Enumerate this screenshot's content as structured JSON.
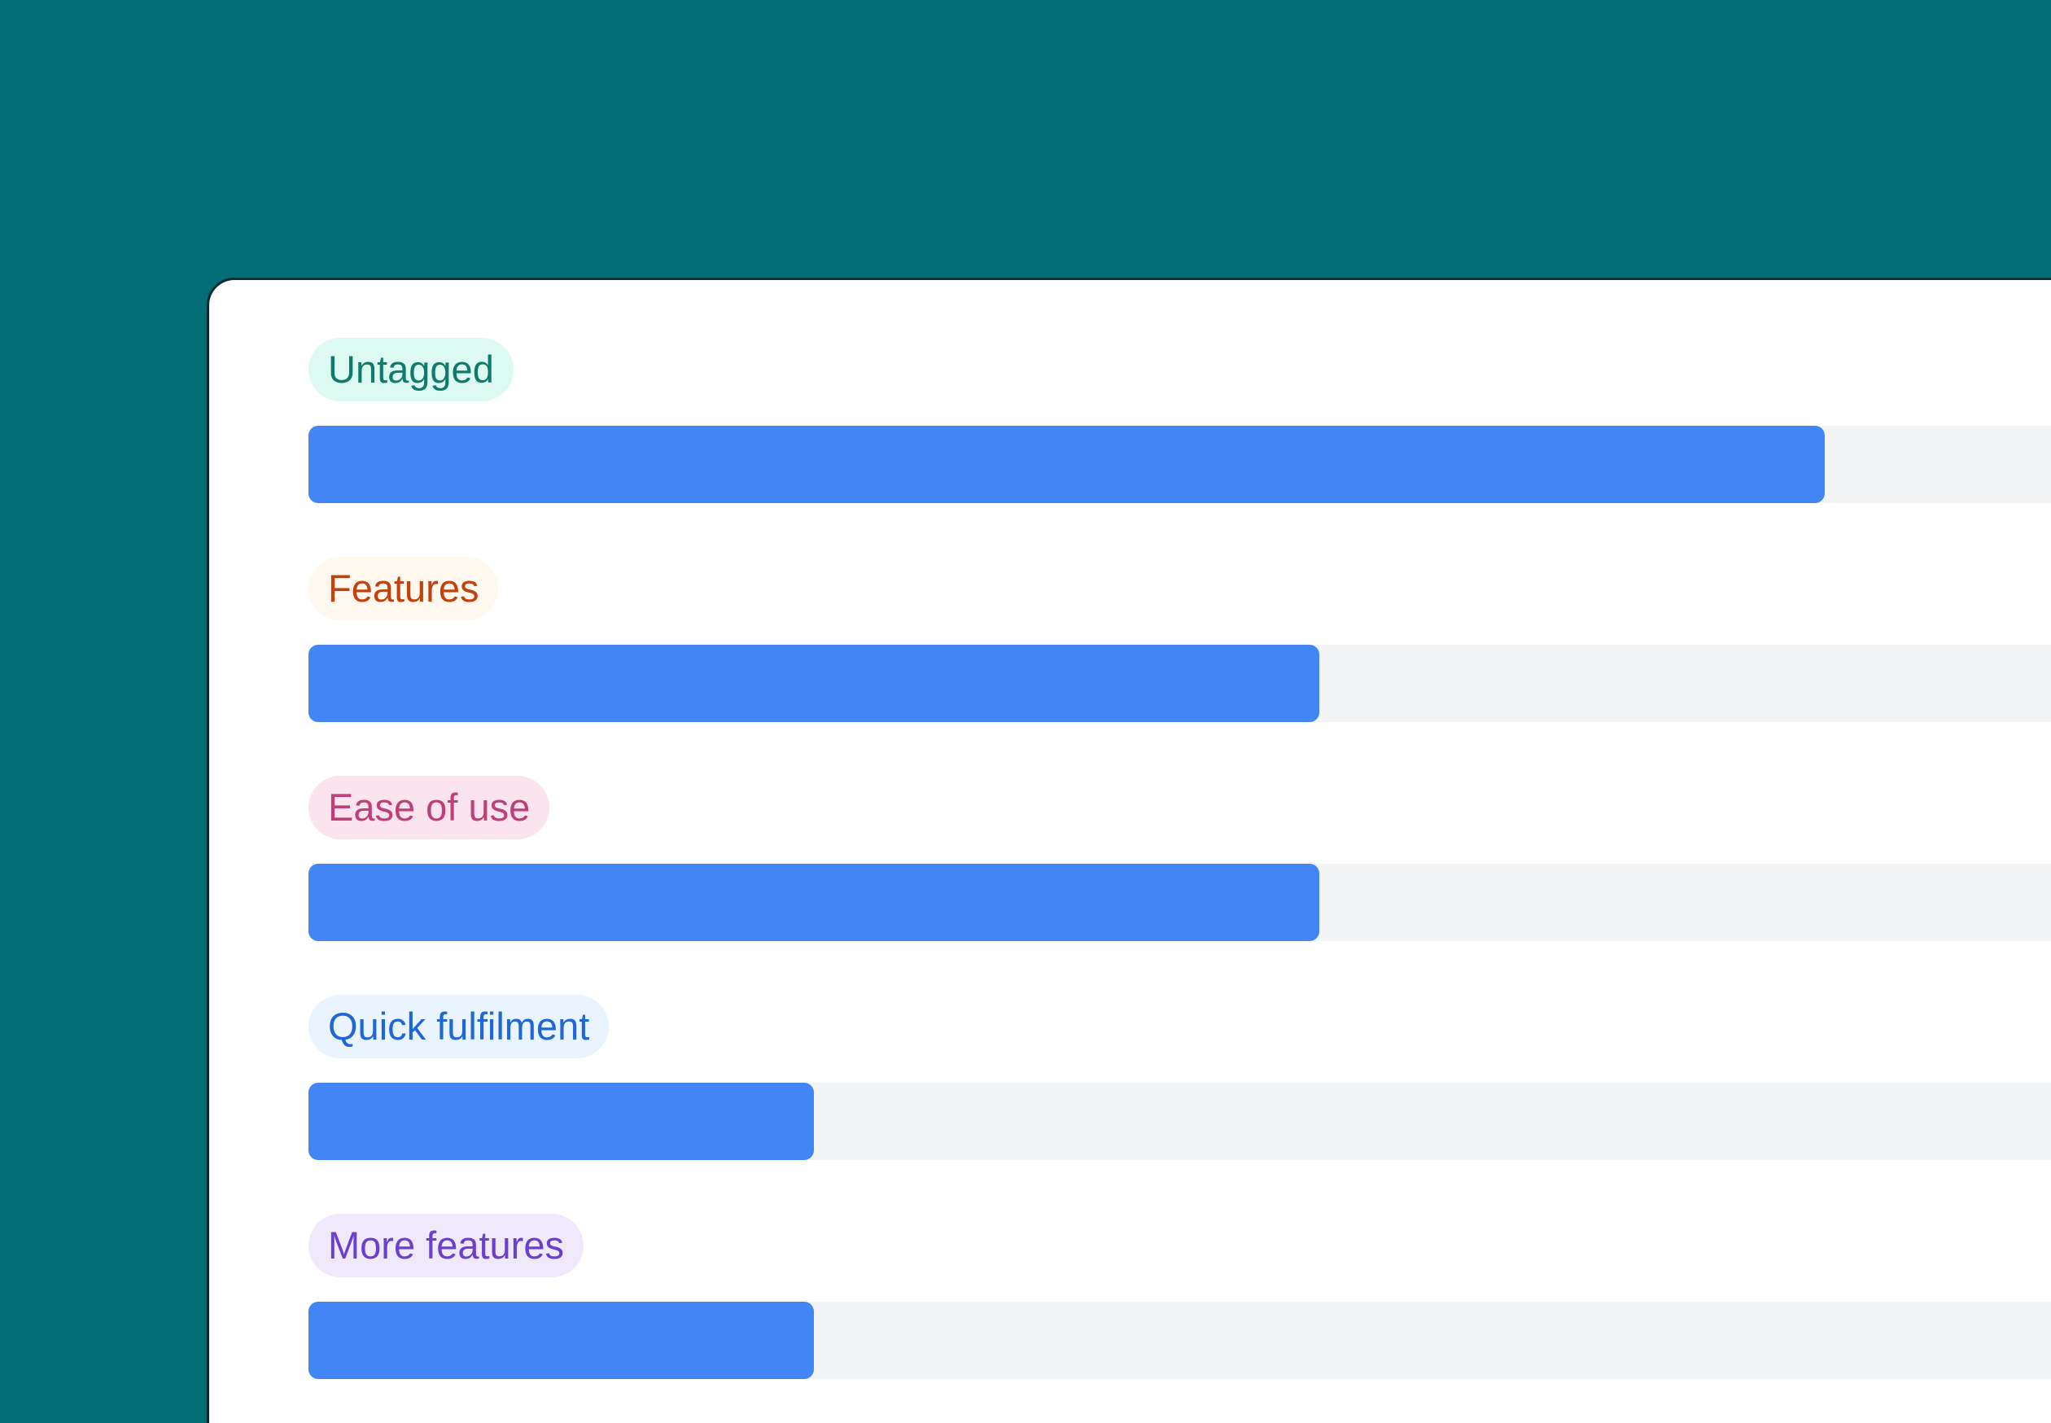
{
  "chart_data": {
    "type": "bar",
    "orientation": "horizontal",
    "categories": [
      "Untagged",
      "Features",
      "Ease of use",
      "Quick fulfilment",
      "More features"
    ],
    "values": [
      3,
      2,
      2,
      1,
      1
    ],
    "bar_color": "#4285f4",
    "track_color": "#f3f4f6",
    "tags": [
      {
        "label": "Untagged",
        "text_color": "#0f7b6c",
        "bg_color": "#dcfaf1"
      },
      {
        "label": "Features",
        "text_color": "#c2410c",
        "bg_color": "#fff8ee"
      },
      {
        "label": "Ease of use",
        "text_color": "#be3f7a",
        "bg_color": "#fce4ef"
      },
      {
        "label": "Quick fulfilment",
        "text_color": "#1f66d6",
        "bg_color": "#eaf4fe"
      },
      {
        "label": "More features",
        "text_color": "#6b3fd0",
        "bg_color": "#f0e9fc"
      }
    ]
  },
  "background_color": "#026d75"
}
